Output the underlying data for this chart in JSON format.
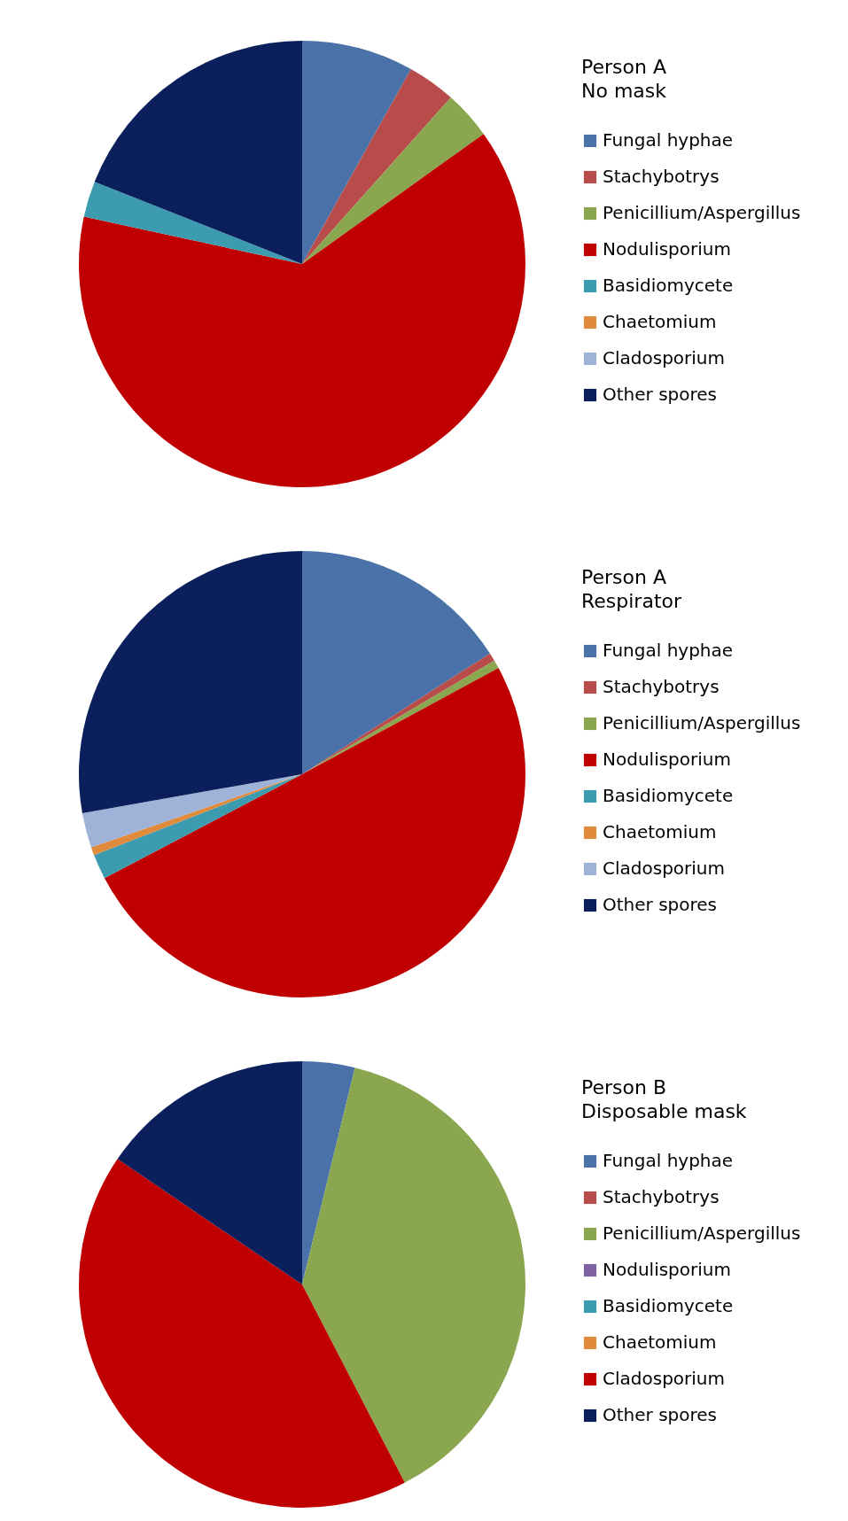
{
  "chart_data": [
    {
      "type": "pie",
      "title": "Person A\nNo mask",
      "legend": "right",
      "categories": [
        "Fungal hyphae",
        "Stachybotrys",
        "Penicillium/Aspergillus",
        "Nodulisporium",
        "Basidiomycete",
        "Chaetomium",
        "Cladosporium",
        "Other spores"
      ],
      "values": [
        8.1,
        3.5,
        3.5,
        63.3,
        2.6,
        0,
        0,
        19.0
      ],
      "colors": [
        "#4a72a8",
        "#b84c4a",
        "#8aa64f",
        "#c00000",
        "#3d9bb0",
        "#e08a3c",
        "#9fb3d8",
        "#0a1f5c"
      ]
    },
    {
      "type": "pie",
      "title": "Person A\nRespirator",
      "legend": "right",
      "categories": [
        "Fungal hyphae",
        "Stachybotrys",
        "Penicillium/Aspergillus",
        "Nodulisporium",
        "Basidiomycete",
        "Chaetomium",
        "Cladosporium",
        "Other spores"
      ],
      "values": [
        15.9,
        0.6,
        0.6,
        50.2,
        1.8,
        0.6,
        2.5,
        27.8
      ],
      "colors": [
        "#4a72a8",
        "#b84c4a",
        "#8aa64f",
        "#c00000",
        "#3d9bb0",
        "#e08a3c",
        "#9fb3d8",
        "#0a1f5c"
      ]
    },
    {
      "type": "pie",
      "title": "Person B\nDisposable mask",
      "legend": "right",
      "categories": [
        "Fungal hyphae",
        "Stachybotrys",
        "Penicillium/Aspergillus",
        "Nodulisporium",
        "Basidiomycete",
        "Chaetomium",
        "Cladosporium",
        "Other spores"
      ],
      "values": [
        3.8,
        0,
        38.6,
        0,
        0,
        0,
        42.1,
        15.5
      ],
      "colors": [
        "#4a72a8",
        "#b84c4a",
        "#8aa64f",
        "#7f60a0",
        "#3d9bb0",
        "#e08a3c",
        "#c00000",
        "#0a1f5c"
      ]
    }
  ]
}
